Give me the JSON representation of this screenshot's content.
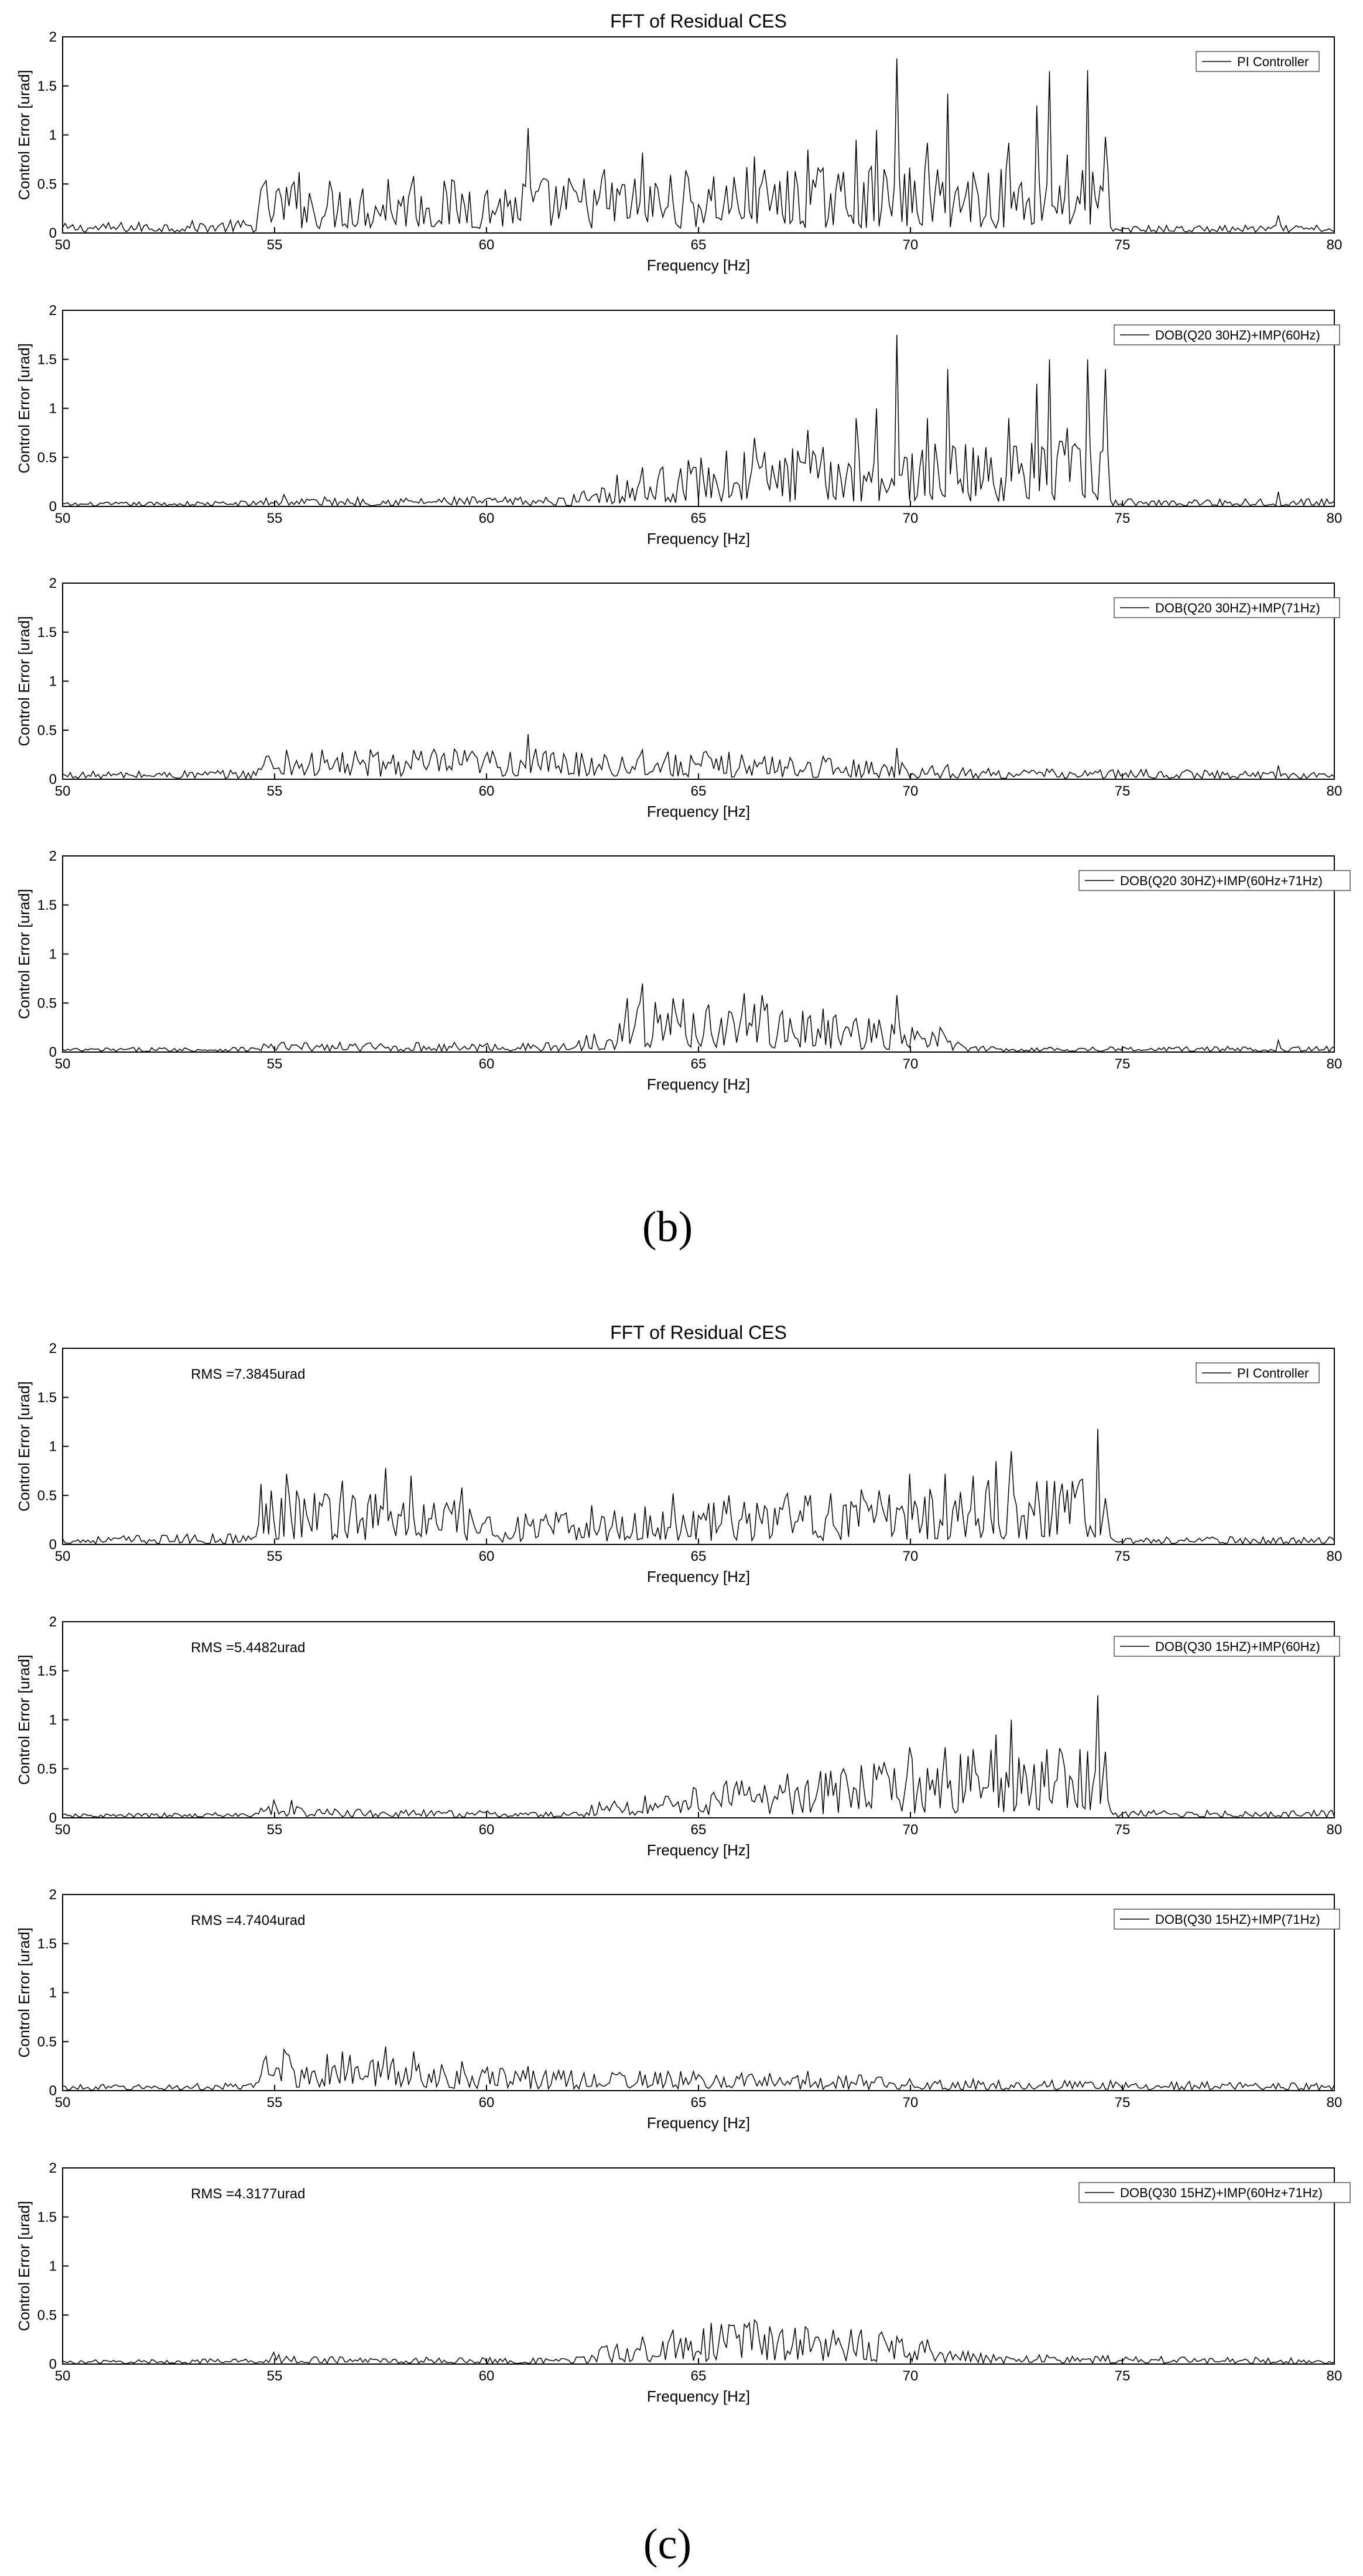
{
  "captions": [
    "(b)",
    "(c)"
  ],
  "chart_data": [
    {
      "type": "line",
      "group": 0,
      "title": "FFT of Residual CES",
      "xlabel": "Frequency [Hz]",
      "ylabel": "Control Error [urad]",
      "xlim": [
        50,
        80
      ],
      "ylim": [
        0,
        2
      ],
      "xticks": [
        50,
        55,
        60,
        65,
        70,
        75,
        80
      ],
      "yticks": [
        0,
        0.5,
        1,
        1.5,
        2
      ],
      "legend_placement": "top-right",
      "rms": "",
      "series": [
        {
          "name": "PI Controller",
          "base": [
            [
              50,
              0.05
            ],
            [
              54.6,
              0.07
            ],
            [
              54.6,
              0.28
            ],
            [
              60,
              0.28
            ],
            [
              66,
              0.34
            ],
            [
              74.7,
              0.34
            ],
            [
              74.7,
              0.04
            ],
            [
              80,
              0.04
            ]
          ],
          "peaks": [
            [
              55.6,
              0.62
            ],
            [
              57.7,
              0.55
            ],
            [
              58.3,
              0.58
            ],
            [
              59.6,
              0.42
            ],
            [
              61.0,
              1.07
            ],
            [
              62.8,
              0.65
            ],
            [
              63.7,
              0.82
            ],
            [
              66.3,
              0.78
            ],
            [
              67.6,
              0.85
            ],
            [
              68.7,
              0.95
            ],
            [
              69.2,
              1.05
            ],
            [
              69.7,
              1.78
            ],
            [
              70.4,
              0.92
            ],
            [
              70.9,
              1.42
            ],
            [
              71.5,
              0.62
            ],
            [
              72.3,
              0.92
            ],
            [
              73.0,
              1.3
            ],
            [
              73.3,
              1.65
            ],
            [
              73.7,
              0.8
            ],
            [
              74.2,
              1.66
            ],
            [
              74.6,
              0.98
            ],
            [
              78.7,
              0.18
            ]
          ]
        }
      ]
    },
    {
      "type": "line",
      "group": 0,
      "title": "",
      "xlabel": "Frequency [Hz]",
      "ylabel": "Control Error [urad]",
      "xlim": [
        50,
        80
      ],
      "ylim": [
        0,
        2
      ],
      "xticks": [
        50,
        55,
        60,
        65,
        70,
        75,
        80
      ],
      "yticks": [
        0,
        0.5,
        1,
        1.5,
        2
      ],
      "legend_placement": "top-right",
      "rms": "",
      "series": [
        {
          "name": "DOB(Q20 30HZ)+IMP(60Hz)",
          "base": [
            [
              50,
              0.02
            ],
            [
              54.6,
              0.03
            ],
            [
              54.6,
              0.05
            ],
            [
              62,
              0.05
            ],
            [
              62.5,
              0.15
            ],
            [
              66,
              0.3
            ],
            [
              74.7,
              0.34
            ],
            [
              74.7,
              0.04
            ],
            [
              80,
              0.04
            ]
          ],
          "peaks": [
            [
              55.2,
              0.12
            ],
            [
              63.7,
              0.4
            ],
            [
              64.9,
              0.4
            ],
            [
              66.3,
              0.7
            ],
            [
              67.6,
              0.78
            ],
            [
              68.7,
              0.9
            ],
            [
              69.2,
              1.0
            ],
            [
              69.7,
              1.75
            ],
            [
              70.4,
              0.9
            ],
            [
              70.9,
              1.4
            ],
            [
              71.5,
              0.6
            ],
            [
              72.3,
              0.9
            ],
            [
              73.0,
              1.25
            ],
            [
              73.3,
              1.5
            ],
            [
              73.7,
              0.8
            ],
            [
              74.2,
              1.5
            ],
            [
              74.6,
              1.4
            ],
            [
              78.7,
              0.15
            ]
          ]
        }
      ]
    },
    {
      "type": "line",
      "group": 0,
      "title": "",
      "xlabel": "Frequency [Hz]",
      "ylabel": "Control Error [urad]",
      "xlim": [
        50,
        80
      ],
      "ylim": [
        0,
        2
      ],
      "xticks": [
        50,
        55,
        60,
        65,
        70,
        75,
        80
      ],
      "yticks": [
        0,
        0.5,
        1,
        1.5,
        2
      ],
      "legend_placement": "top-right",
      "rms": "",
      "series": [
        {
          "name": "DOB(Q20 30HZ)+IMP(71Hz)",
          "base": [
            [
              50,
              0.04
            ],
            [
              54.6,
              0.05
            ],
            [
              54.6,
              0.15
            ],
            [
              60,
              0.16
            ],
            [
              66,
              0.14
            ],
            [
              69.5,
              0.1
            ],
            [
              70.9,
              0.06
            ],
            [
              80,
              0.04
            ]
          ],
          "peaks": [
            [
              55.3,
              0.3
            ],
            [
              57.4,
              0.25
            ],
            [
              58.3,
              0.3
            ],
            [
              60.2,
              0.22
            ],
            [
              61.0,
              0.46
            ],
            [
              62.8,
              0.25
            ],
            [
              63.7,
              0.3
            ],
            [
              69.7,
              0.32
            ],
            [
              70.9,
              0.15
            ],
            [
              78.7,
              0.14
            ]
          ]
        }
      ]
    },
    {
      "type": "line",
      "group": 0,
      "title": "",
      "xlabel": "Frequency [Hz]",
      "ylabel": "Control Error [urad]",
      "xlim": [
        50,
        80
      ],
      "ylim": [
        0,
        2
      ],
      "xticks": [
        50,
        55,
        60,
        65,
        70,
        75,
        80
      ],
      "yticks": [
        0,
        0.5,
        1,
        1.5,
        2
      ],
      "legend_placement": "top-right",
      "rms": "",
      "series": [
        {
          "name": "DOB(Q20 30HZ)+IMP(60Hz+71Hz)",
          "base": [
            [
              50,
              0.02
            ],
            [
              54.6,
              0.03
            ],
            [
              54.6,
              0.05
            ],
            [
              62,
              0.05
            ],
            [
              62.5,
              0.12
            ],
            [
              64,
              0.3
            ],
            [
              66,
              0.26
            ],
            [
              68,
              0.22
            ],
            [
              69.7,
              0.15
            ],
            [
              71,
              0.1
            ],
            [
              71.3,
              0.03
            ],
            [
              80,
              0.03
            ]
          ],
          "peaks": [
            [
              55.2,
              0.1
            ],
            [
              63.3,
              0.55
            ],
            [
              63.7,
              0.7
            ],
            [
              64.4,
              0.55
            ],
            [
              66.1,
              0.6
            ],
            [
              66.5,
              0.58
            ],
            [
              68.2,
              0.35
            ],
            [
              69.7,
              0.58
            ],
            [
              70.7,
              0.25
            ],
            [
              78.7,
              0.12
            ]
          ]
        }
      ]
    },
    {
      "type": "line",
      "group": 1,
      "title": "FFT of Residual CES",
      "xlabel": "Frequency [Hz]",
      "ylabel": "Control Error [urad]",
      "xlim": [
        50,
        80
      ],
      "ylim": [
        0,
        2
      ],
      "xticks": [
        50,
        55,
        60,
        65,
        70,
        75,
        80
      ],
      "yticks": [
        0,
        0.5,
        1,
        1.5,
        2
      ],
      "legend_placement": "top-right",
      "rms": "RMS =7.3845urad",
      "series": [
        {
          "name": "PI Controller",
          "base": [
            [
              50,
              0.04
            ],
            [
              54.6,
              0.06
            ],
            [
              54.6,
              0.35
            ],
            [
              59,
              0.25
            ],
            [
              60,
              0.15
            ],
            [
              64,
              0.2
            ],
            [
              70,
              0.3
            ],
            [
              74.7,
              0.38
            ],
            [
              74.7,
              0.04
            ],
            [
              80,
              0.04
            ]
          ],
          "peaks": [
            [
              54.9,
              0.55
            ],
            [
              55.3,
              0.72
            ],
            [
              56.6,
              0.65
            ],
            [
              57.6,
              0.78
            ],
            [
              58.2,
              0.7
            ],
            [
              59.4,
              0.58
            ],
            [
              62.5,
              0.4
            ],
            [
              64.4,
              0.52
            ],
            [
              65.7,
              0.5
            ],
            [
              67.1,
              0.52
            ],
            [
              68.1,
              0.52
            ],
            [
              70.0,
              0.72
            ],
            [
              70.8,
              0.72
            ],
            [
              71.5,
              0.7
            ],
            [
              72.0,
              0.85
            ],
            [
              72.4,
              0.95
            ],
            [
              73.2,
              0.65
            ],
            [
              73.6,
              0.62
            ],
            [
              74.0,
              0.65
            ],
            [
              74.4,
              1.18
            ]
          ]
        }
      ]
    },
    {
      "type": "line",
      "group": 1,
      "title": "",
      "xlabel": "Frequency [Hz]",
      "ylabel": "Control Error [urad]",
      "xlim": [
        50,
        80
      ],
      "ylim": [
        0,
        2
      ],
      "xticks": [
        50,
        55,
        60,
        65,
        70,
        75,
        80
      ],
      "yticks": [
        0,
        0.5,
        1,
        1.5,
        2
      ],
      "legend_placement": "top-right",
      "rms": "RMS =5.4482urad",
      "series": [
        {
          "name": "DOB(Q30 15HZ)+IMP(60Hz)",
          "base": [
            [
              50,
              0.02
            ],
            [
              54.6,
              0.03
            ],
            [
              54.6,
              0.08
            ],
            [
              56,
              0.05
            ],
            [
              62,
              0.03
            ],
            [
              62.5,
              0.08
            ],
            [
              65,
              0.18
            ],
            [
              68,
              0.25
            ],
            [
              72,
              0.35
            ],
            [
              74.7,
              0.38
            ],
            [
              74.7,
              0.04
            ],
            [
              80,
              0.04
            ]
          ],
          "peaks": [
            [
              55.0,
              0.18
            ],
            [
              55.4,
              0.18
            ],
            [
              64.3,
              0.22
            ],
            [
              66.0,
              0.38
            ],
            [
              67.1,
              0.45
            ],
            [
              68.1,
              0.48
            ],
            [
              70.0,
              0.72
            ],
            [
              70.8,
              0.72
            ],
            [
              71.5,
              0.7
            ],
            [
              72.0,
              0.85
            ],
            [
              72.4,
              1.0
            ],
            [
              73.2,
              0.7
            ],
            [
              73.6,
              0.65
            ],
            [
              74.0,
              0.7
            ],
            [
              74.4,
              1.25
            ]
          ]
        }
      ]
    },
    {
      "type": "line",
      "group": 1,
      "title": "",
      "xlabel": "Frequency [Hz]",
      "ylabel": "Control Error [urad]",
      "xlim": [
        50,
        80
      ],
      "ylim": [
        0,
        2
      ],
      "xticks": [
        50,
        55,
        60,
        65,
        70,
        75,
        80
      ],
      "yticks": [
        0,
        0.5,
        1,
        1.5,
        2
      ],
      "legend_placement": "top-right",
      "rms": "RMS =4.7404urad",
      "series": [
        {
          "name": "DOB(Q30 15HZ)+IMP(71Hz)",
          "base": [
            [
              50,
              0.03
            ],
            [
              54.6,
              0.04
            ],
            [
              54.6,
              0.2
            ],
            [
              58,
              0.18
            ],
            [
              60,
              0.12
            ],
            [
              65,
              0.1
            ],
            [
              69,
              0.08
            ],
            [
              71,
              0.06
            ],
            [
              80,
              0.04
            ]
          ],
          "peaks": [
            [
              54.8,
              0.35
            ],
            [
              55.2,
              0.42
            ],
            [
              56.6,
              0.4
            ],
            [
              57.6,
              0.45
            ],
            [
              58.3,
              0.4
            ],
            [
              59.4,
              0.3
            ],
            [
              61.0,
              0.25
            ],
            [
              63.6,
              0.2
            ],
            [
              66.0,
              0.18
            ],
            [
              67.6,
              0.2
            ],
            [
              70.0,
              0.12
            ]
          ]
        }
      ]
    },
    {
      "type": "line",
      "group": 1,
      "title": "",
      "xlabel": "Frequency [Hz]",
      "ylabel": "Control Error [urad]",
      "xlim": [
        50,
        80
      ],
      "ylim": [
        0,
        2
      ],
      "xticks": [
        50,
        55,
        60,
        65,
        70,
        75,
        80
      ],
      "yticks": [
        0,
        0.5,
        1,
        1.5,
        2
      ],
      "legend_placement": "top-right",
      "rms": "RMS =4.3177urad",
      "series": [
        {
          "name": "DOB(Q30 15HZ)+IMP(60Hz+71Hz)",
          "base": [
            [
              50,
              0.02
            ],
            [
              54.6,
              0.03
            ],
            [
              54.6,
              0.06
            ],
            [
              56,
              0.04
            ],
            [
              62,
              0.03
            ],
            [
              62.5,
              0.08
            ],
            [
              64,
              0.15
            ],
            [
              66,
              0.22
            ],
            [
              68,
              0.2
            ],
            [
              70,
              0.15
            ],
            [
              72,
              0.05
            ],
            [
              80,
              0.03
            ]
          ],
          "peaks": [
            [
              55.0,
              0.12
            ],
            [
              63.7,
              0.28
            ],
            [
              64.4,
              0.35
            ],
            [
              65.3,
              0.42
            ],
            [
              65.7,
              0.4
            ],
            [
              66.3,
              0.45
            ],
            [
              67.0,
              0.35
            ],
            [
              67.5,
              0.38
            ],
            [
              68.2,
              0.35
            ],
            [
              69.7,
              0.28
            ],
            [
              70.4,
              0.25
            ]
          ]
        }
      ]
    }
  ]
}
